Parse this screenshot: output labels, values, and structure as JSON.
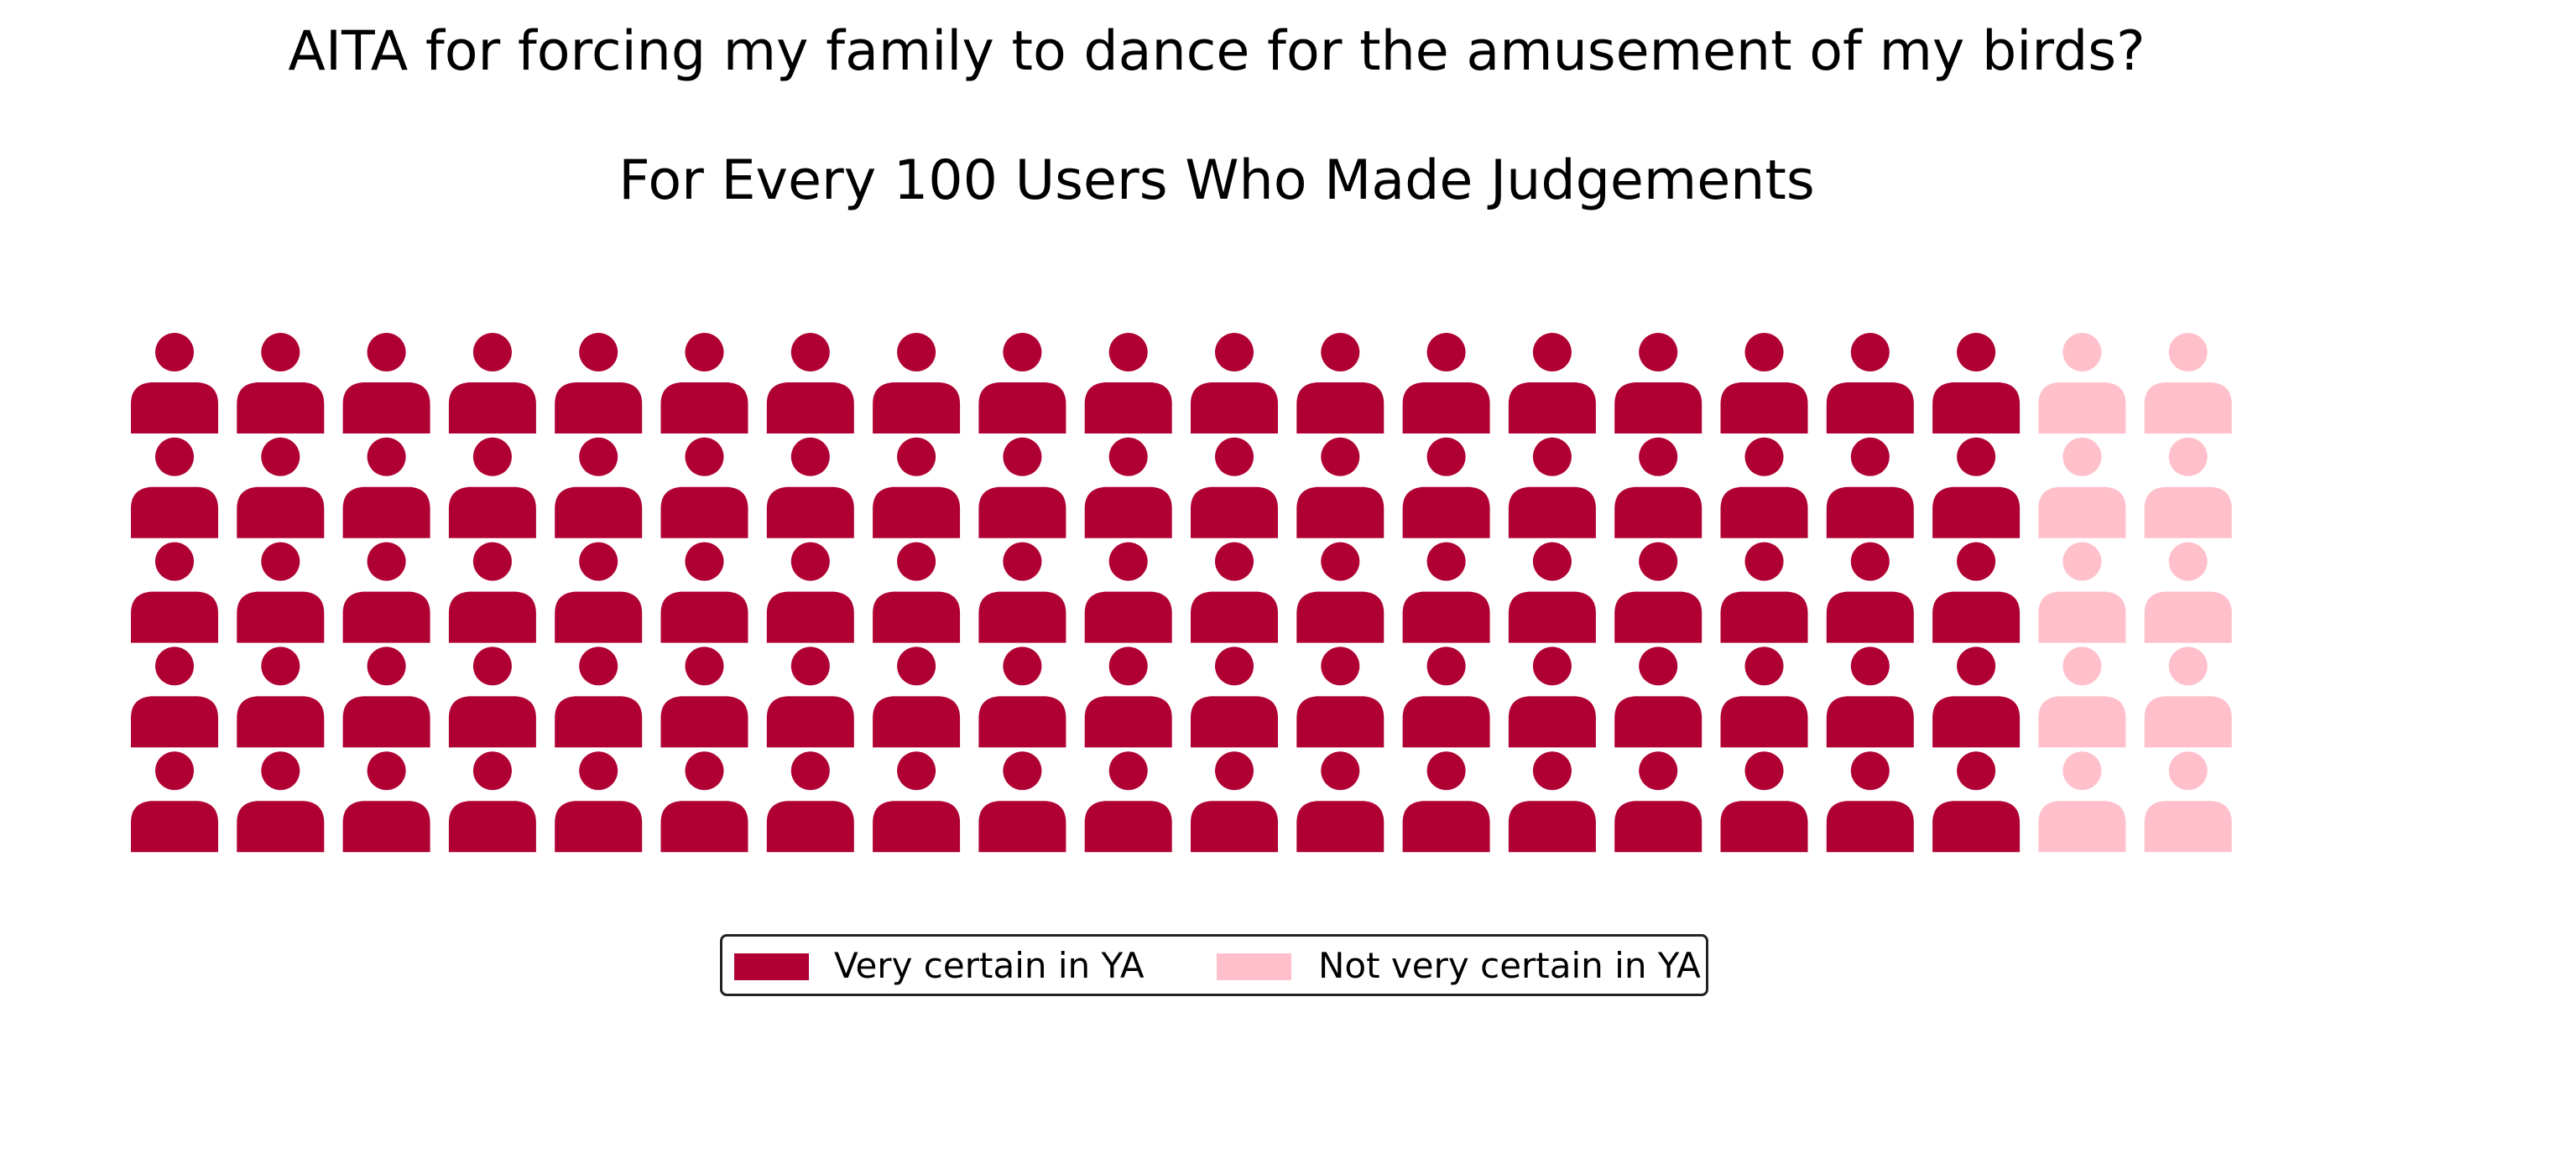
{
  "chart_data": {
    "type": "waffle",
    "title": "AITA for forcing my family to dance for the amusement of my birds?",
    "subtitle": "For Every 100 Users Who Made Judgements",
    "rows": 5,
    "columns": 20,
    "icon": "person-icon",
    "series": [
      {
        "name": "Very certain in YA",
        "value": 90,
        "color": "#b00033"
      },
      {
        "name": "Not very certain in YA",
        "value": 10,
        "color": "#ffc0cb"
      }
    ],
    "legend_position": "bottom-center"
  }
}
